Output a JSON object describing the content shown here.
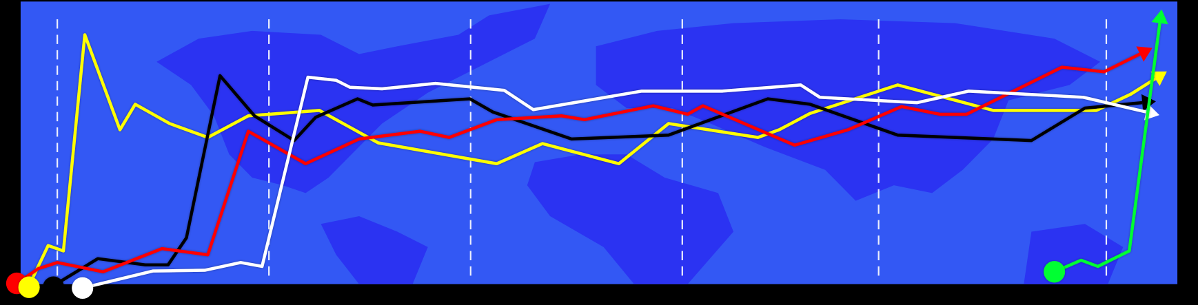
{
  "players": [
    {
      "color": "#ffff00"
    },
    {
      "color": "#000000"
    },
    {
      "color": "#ff0000"
    },
    {
      "color": "#ffffff"
    },
    {
      "color": "#00ff33"
    }
  ]
}
